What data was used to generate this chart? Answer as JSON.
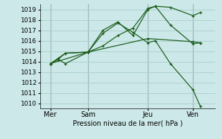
{
  "xlabel": "Pression niveau de la mer( hPa )",
  "bg_color": "#cce8e8",
  "grid_color": "#aacccc",
  "line_color": "#1a5c1a",
  "vline_color": "#556666",
  "ylim": [
    1009.5,
    1019.5
  ],
  "xlim": [
    -0.2,
    11.5
  ],
  "yticks": [
    1010,
    1011,
    1012,
    1013,
    1014,
    1015,
    1016,
    1017,
    1018,
    1019
  ],
  "xtick_labels": [
    "Mer",
    "Sam",
    "Jeu",
    "Ven"
  ],
  "xtick_positions": [
    0.5,
    3.0,
    7.0,
    10.0
  ],
  "vline_positions": [
    0.5,
    3.0,
    7.0,
    10.0
  ],
  "lines": [
    {
      "x": [
        0.5,
        1.0,
        1.5,
        3.0,
        4.0,
        5.0,
        6.0,
        7.0,
        7.5,
        8.5,
        10.0,
        10.5
      ],
      "y": [
        1013.8,
        1014.2,
        1014.8,
        1014.9,
        1015.5,
        1016.5,
        1017.2,
        1019.1,
        1019.3,
        1017.5,
        1015.7,
        1015.8
      ]
    },
    {
      "x": [
        0.5,
        1.0,
        1.5,
        3.0,
        4.0,
        5.0,
        6.0,
        7.0,
        7.5,
        8.5,
        10.0,
        10.5
      ],
      "y": [
        1013.8,
        1014.2,
        1013.8,
        1014.9,
        1017.0,
        1017.8,
        1016.5,
        1019.0,
        1019.3,
        1019.2,
        1018.4,
        1018.7
      ]
    },
    {
      "x": [
        0.5,
        1.0,
        1.5,
        3.0,
        4.0,
        5.0,
        6.0,
        7.0,
        7.5,
        8.5,
        10.0,
        10.5
      ],
      "y": [
        1013.8,
        1014.3,
        1014.8,
        1014.9,
        1016.7,
        1017.7,
        1016.8,
        1015.8,
        1016.0,
        1013.8,
        1011.3,
        1009.7
      ]
    },
    {
      "x": [
        0.5,
        3.0,
        7.0,
        10.0,
        10.5
      ],
      "y": [
        1013.8,
        1014.9,
        1016.2,
        1015.9,
        1015.8
      ]
    }
  ],
  "marker": "+",
  "marker_size": 3.5,
  "linewidth": 0.9,
  "xlabel_fontsize": 7,
  "ytick_fontsize": 6.5,
  "xtick_fontsize": 7
}
